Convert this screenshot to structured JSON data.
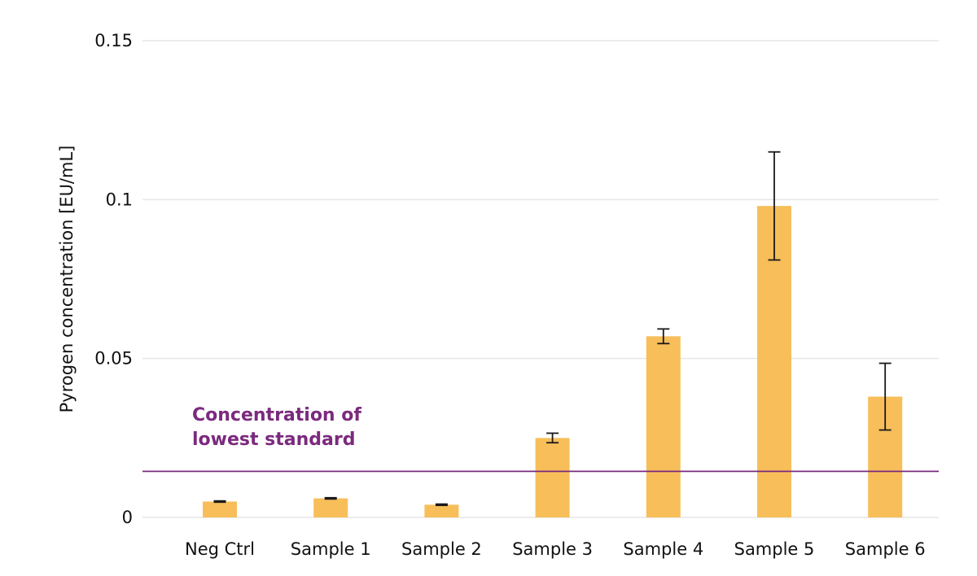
{
  "chart_data": {
    "type": "bar",
    "title": "",
    "xlabel": "",
    "ylabel": "Pyrogen concentration [EU/mL]",
    "categories": [
      "Neg Ctrl",
      "Sample 1",
      "Sample 2",
      "Sample 3",
      "Sample 4",
      "Sample 5",
      "Sample 6"
    ],
    "values": [
      0.005,
      0.006,
      0.004,
      0.025,
      0.057,
      0.098,
      0.038
    ],
    "error": [
      0.0002,
      0.0002,
      0.0002,
      0.0015,
      0.0023,
      0.017,
      0.0105
    ],
    "ylim": [
      0,
      0.15
    ],
    "yticks": [
      0,
      0.05,
      0.1,
      0.15
    ],
    "ytick_labels": [
      "0",
      "0.05",
      "0.1",
      "0.15"
    ],
    "grid": true,
    "bar_color": "#F7BE5A",
    "errorbar_color": "#1a1a1a",
    "reference_line": {
      "value": 0.0145,
      "label_lines": [
        "Concentration of",
        "lowest standard"
      ],
      "color": "#7B2A7E"
    }
  }
}
